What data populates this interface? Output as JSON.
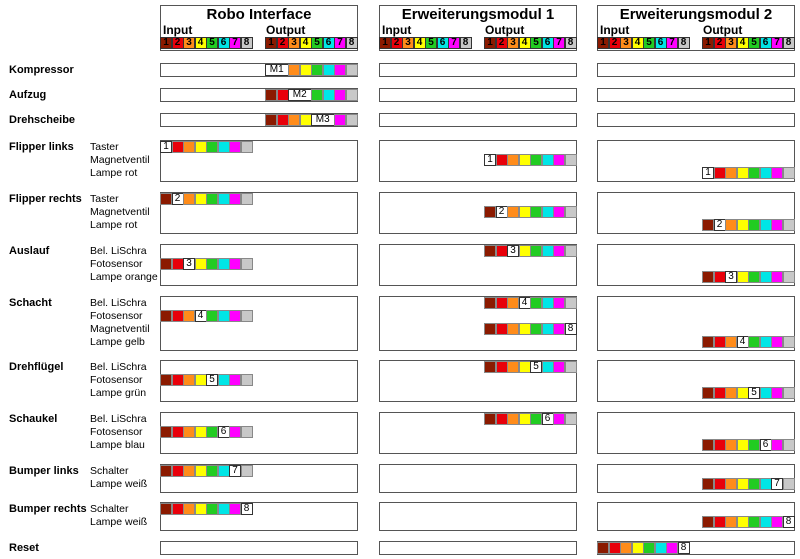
{
  "modules": [
    {
      "title": "Robo Interface",
      "input_label": "Input",
      "output_label": "Output"
    },
    {
      "title": "Erweiterungsmodul 1",
      "input_label": "Input",
      "output_label": "Output"
    },
    {
      "title": "Erweiterungsmodul 2",
      "input_label": "Input",
      "output_label": "Output"
    }
  ],
  "port_numbers": [
    "1",
    "2",
    "3",
    "4",
    "5",
    "6",
    "7",
    "8"
  ],
  "colors": {
    "ports": [
      "#8b1a00",
      "#e8000a",
      "#ff8c1a",
      "#ffff00",
      "#22cc22",
      "#00e6e6",
      "#ff00ff",
      "#c8c8c8"
    ],
    "box_border": "#555555"
  },
  "rows": [
    {
      "label": "Kompressor",
      "sublabels": [],
      "markers": [
        {
          "module": 0,
          "side": "out",
          "line": 0,
          "index": 1,
          "text": "M1"
        }
      ]
    },
    {
      "label": "Aufzug",
      "sublabels": [],
      "markers": [
        {
          "module": 0,
          "side": "out",
          "line": 0,
          "index": 2,
          "text": "M2"
        }
      ]
    },
    {
      "label": "Drehscheibe",
      "sublabels": [],
      "markers": [
        {
          "module": 0,
          "side": "out",
          "line": 0,
          "index": 3,
          "text": "M3"
        }
      ]
    },
    {
      "label": "Flipper links",
      "sublabels": [
        "Taster",
        "Magnetventil",
        "Lampe rot"
      ],
      "markers": [
        {
          "module": 0,
          "side": "in",
          "line": 0,
          "index": 1,
          "text": "1"
        },
        {
          "module": 1,
          "side": "out",
          "line": 1,
          "index": 1,
          "text": "1"
        },
        {
          "module": 2,
          "side": "out",
          "line": 2,
          "index": 1,
          "text": "1"
        }
      ]
    },
    {
      "label": "Flipper rechts",
      "sublabels": [
        "Taster",
        "Magnetventil",
        "Lampe rot"
      ],
      "markers": [
        {
          "module": 0,
          "side": "in",
          "line": 0,
          "index": 2,
          "text": "2"
        },
        {
          "module": 1,
          "side": "out",
          "line": 1,
          "index": 2,
          "text": "2"
        },
        {
          "module": 2,
          "side": "out",
          "line": 2,
          "index": 2,
          "text": "2"
        }
      ]
    },
    {
      "label": "Auslauf",
      "sublabels": [
        "Bel. LiSchra",
        "Fotosensor",
        "Lampe orange"
      ],
      "markers": [
        {
          "module": 1,
          "side": "out",
          "line": 0,
          "index": 3,
          "text": "3"
        },
        {
          "module": 0,
          "side": "in",
          "line": 1,
          "index": 3,
          "text": "3"
        },
        {
          "module": 2,
          "side": "out",
          "line": 2,
          "index": 3,
          "text": "3"
        }
      ]
    },
    {
      "label": "Schacht",
      "sublabels": [
        "Bel. LiSchra",
        "Fotosensor",
        "Magnetventil",
        "Lampe gelb"
      ],
      "markers": [
        {
          "module": 1,
          "side": "out",
          "line": 0,
          "index": 4,
          "text": "4"
        },
        {
          "module": 0,
          "side": "in",
          "line": 1,
          "index": 4,
          "text": "4"
        },
        {
          "module": 1,
          "side": "out",
          "line": 2,
          "index": 8,
          "text": "8"
        },
        {
          "module": 2,
          "side": "out",
          "line": 3,
          "index": 4,
          "text": "4"
        }
      ]
    },
    {
      "label": "Drehflügel",
      "sublabels": [
        "Bel. LiSchra",
        "Fotosensor",
        "Lampe grün"
      ],
      "markers": [
        {
          "module": 1,
          "side": "out",
          "line": 0,
          "index": 5,
          "text": "5"
        },
        {
          "module": 0,
          "side": "in",
          "line": 1,
          "index": 5,
          "text": "5"
        },
        {
          "module": 2,
          "side": "out",
          "line": 2,
          "index": 5,
          "text": "5"
        }
      ]
    },
    {
      "label": "Schaukel",
      "sublabels": [
        "Bel. LiSchra",
        "Fotosensor",
        "Lampe blau"
      ],
      "markers": [
        {
          "module": 1,
          "side": "out",
          "line": 0,
          "index": 6,
          "text": "6"
        },
        {
          "module": 0,
          "side": "in",
          "line": 1,
          "index": 6,
          "text": "6"
        },
        {
          "module": 2,
          "side": "out",
          "line": 2,
          "index": 6,
          "text": "6"
        }
      ]
    },
    {
      "label": "Bumper links",
      "sublabels": [
        "Schalter",
        "Lampe weiß"
      ],
      "markers": [
        {
          "module": 0,
          "side": "in",
          "line": 0,
          "index": 7,
          "text": "7"
        },
        {
          "module": 2,
          "side": "out",
          "line": 1,
          "index": 7,
          "text": "7"
        }
      ]
    },
    {
      "label": "Bumper rechts",
      "sublabels": [
        "Schalter",
        "Lampe weiß"
      ],
      "markers": [
        {
          "module": 0,
          "side": "in",
          "line": 0,
          "index": 8,
          "text": "8"
        },
        {
          "module": 2,
          "side": "out",
          "line": 1,
          "index": 8,
          "text": "8"
        }
      ]
    },
    {
      "label": "Reset",
      "sublabels": [],
      "markers": [
        {
          "module": 2,
          "side": "in",
          "line": 0,
          "index": 8,
          "text": "8"
        }
      ]
    }
  ]
}
